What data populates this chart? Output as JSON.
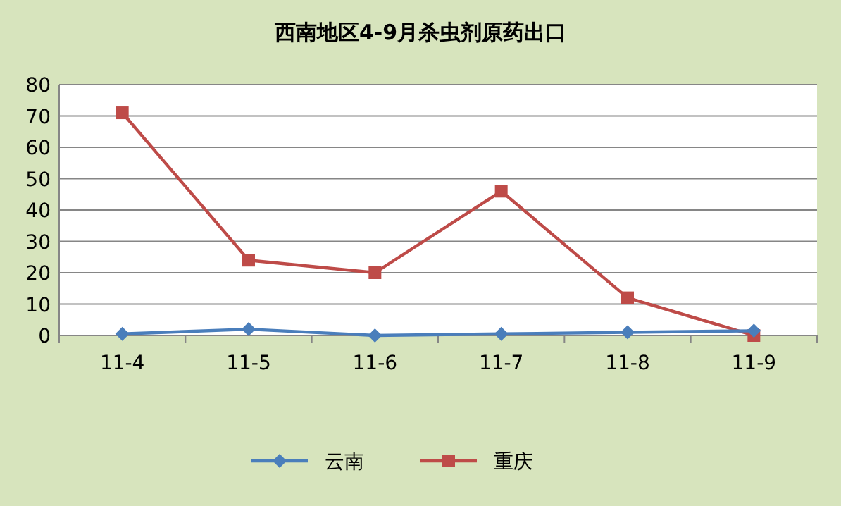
{
  "chart_data": {
    "type": "line",
    "title": "西南地区4-9月杀虫剂原药出口",
    "categories": [
      "11-4",
      "11-5",
      "11-6",
      "11-7",
      "11-8",
      "11-9"
    ],
    "series": [
      {
        "name": "云南",
        "color": "#4a7ebb",
        "marker": "diamond",
        "values": [
          0.5,
          2,
          0,
          0.5,
          1,
          1.5
        ]
      },
      {
        "name": "重庆",
        "color": "#be4b48",
        "marker": "square",
        "values": [
          71,
          24,
          20,
          46,
          12,
          0
        ]
      }
    ],
    "ylim": [
      0,
      80
    ],
    "yticks": [
      0,
      10,
      20,
      30,
      40,
      50,
      60,
      70,
      80
    ],
    "grid": "y",
    "legend": "bottom",
    "line_style": "solid"
  }
}
